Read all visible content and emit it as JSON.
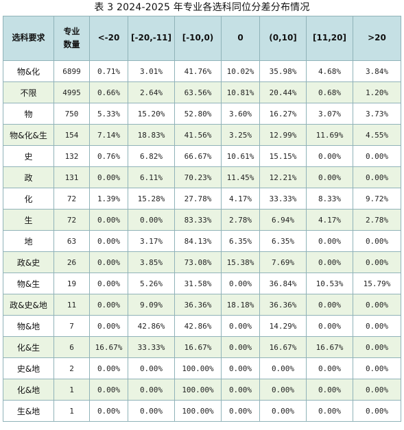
{
  "caption": "表 3 2024-2025 年专业各选科同位分差分布情况",
  "headers": {
    "requirement": "选科要求",
    "count_line1": "专业",
    "count_line2": "数量",
    "bins": [
      "<-20",
      "[-20,-11]",
      "[-10,0)",
      "0",
      "(0,10]",
      "[11,20]",
      ">20"
    ]
  },
  "colors": {
    "header_bg": "#c5e0e4",
    "alt_row_bg": "#eaf4e2",
    "border": "#8fb2b8"
  },
  "rows": [
    {
      "req": "物&化",
      "count": "6899",
      "vals": [
        "0.71%",
        "3.01%",
        "41.76%",
        "10.02%",
        "35.98%",
        "4.68%",
        "3.84%"
      ]
    },
    {
      "req": "不限",
      "count": "4995",
      "vals": [
        "0.66%",
        "2.64%",
        "63.56%",
        "10.81%",
        "20.44%",
        "0.68%",
        "1.20%"
      ]
    },
    {
      "req": "物",
      "count": "750",
      "vals": [
        "5.33%",
        "15.20%",
        "52.80%",
        "3.60%",
        "16.27%",
        "3.07%",
        "3.73%"
      ]
    },
    {
      "req": "物&化&生",
      "count": "154",
      "vals": [
        "7.14%",
        "18.83%",
        "41.56%",
        "3.25%",
        "12.99%",
        "11.69%",
        "4.55%"
      ]
    },
    {
      "req": "史",
      "count": "132",
      "vals": [
        "0.76%",
        "6.82%",
        "66.67%",
        "10.61%",
        "15.15%",
        "0.00%",
        "0.00%"
      ]
    },
    {
      "req": "政",
      "count": "131",
      "vals": [
        "0.00%",
        "6.11%",
        "70.23%",
        "11.45%",
        "12.21%",
        "0.00%",
        "0.00%"
      ]
    },
    {
      "req": "化",
      "count": "72",
      "vals": [
        "1.39%",
        "15.28%",
        "27.78%",
        "4.17%",
        "33.33%",
        "8.33%",
        "9.72%"
      ]
    },
    {
      "req": "生",
      "count": "72",
      "vals": [
        "0.00%",
        "0.00%",
        "83.33%",
        "2.78%",
        "6.94%",
        "4.17%",
        "2.78%"
      ]
    },
    {
      "req": "地",
      "count": "63",
      "vals": [
        "0.00%",
        "3.17%",
        "84.13%",
        "6.35%",
        "6.35%",
        "0.00%",
        "0.00%"
      ]
    },
    {
      "req": "政&史",
      "count": "26",
      "vals": [
        "0.00%",
        "3.85%",
        "73.08%",
        "15.38%",
        "7.69%",
        "0.00%",
        "0.00%"
      ]
    },
    {
      "req": "物&生",
      "count": "19",
      "vals": [
        "0.00%",
        "5.26%",
        "31.58%",
        "0.00%",
        "36.84%",
        "10.53%",
        "15.79%"
      ]
    },
    {
      "req": "政&史&地",
      "count": "11",
      "vals": [
        "0.00%",
        "9.09%",
        "36.36%",
        "18.18%",
        "36.36%",
        "0.00%",
        "0.00%"
      ]
    },
    {
      "req": "物&地",
      "count": "7",
      "vals": [
        "0.00%",
        "42.86%",
        "42.86%",
        "0.00%",
        "14.29%",
        "0.00%",
        "0.00%"
      ]
    },
    {
      "req": "化&生",
      "count": "6",
      "vals": [
        "16.67%",
        "33.33%",
        "16.67%",
        "0.00%",
        "16.67%",
        "16.67%",
        "0.00%"
      ]
    },
    {
      "req": "史&地",
      "count": "2",
      "vals": [
        "0.00%",
        "0.00%",
        "100.00%",
        "0.00%",
        "0.00%",
        "0.00%",
        "0.00%"
      ]
    },
    {
      "req": "化&地",
      "count": "1",
      "vals": [
        "0.00%",
        "0.00%",
        "100.00%",
        "0.00%",
        "0.00%",
        "0.00%",
        "0.00%"
      ]
    },
    {
      "req": "生&地",
      "count": "1",
      "vals": [
        "0.00%",
        "0.00%",
        "100.00%",
        "0.00%",
        "0.00%",
        "0.00%",
        "0.00%"
      ]
    }
  ]
}
